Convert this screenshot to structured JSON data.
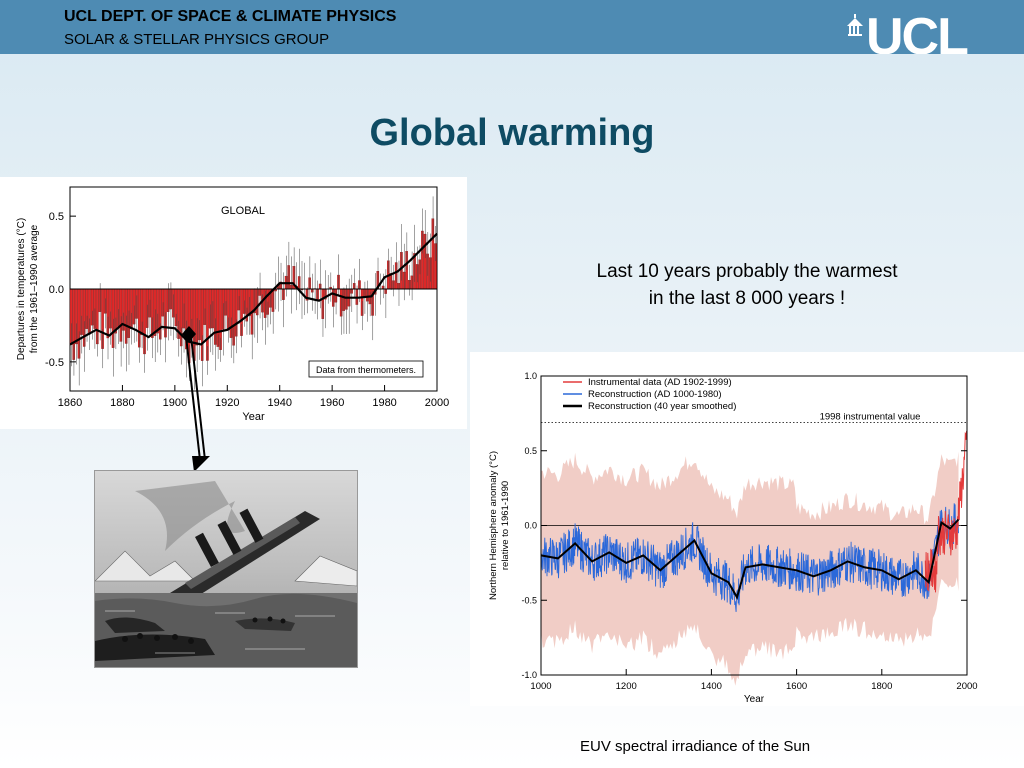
{
  "header": {
    "dept": "UCL DEPT. OF SPACE & CLIMATE PHYSICS",
    "group": "SOLAR & STELLAR PHYSICS GROUP",
    "logo_text": "UCL"
  },
  "slide": {
    "title": "Global warming",
    "quote_line1": "Last 10 years probably the warmest",
    "quote_line2": "in the last 8 000 years !",
    "caption": "EUV spectral irradiance of the Sun"
  },
  "chart_data": [
    {
      "type": "bar",
      "title": "GLOBAL",
      "xlabel": "Year",
      "ylabel_line1": "Departures in temperatures (°C)",
      "ylabel_line2": "from the 1961–1990 average",
      "annotation": "Data from thermometers.",
      "xlim": [
        1860,
        2000
      ],
      "ylim": [
        -0.7,
        0.7
      ],
      "x_ticks": [
        "1860",
        "1880",
        "1900",
        "1920",
        "1940",
        "1960",
        "1980",
        "2000"
      ],
      "y_ticks": [
        "0.5",
        "0.0",
        "-0.5"
      ],
      "smoothed_x": [
        1860,
        1865,
        1870,
        1875,
        1880,
        1885,
        1890,
        1895,
        1900,
        1905,
        1910,
        1915,
        1920,
        1925,
        1930,
        1935,
        1940,
        1945,
        1950,
        1955,
        1960,
        1965,
        1970,
        1975,
        1980,
        1985,
        1990,
        1995,
        2000
      ],
      "smoothed_y": [
        -0.38,
        -0.33,
        -0.28,
        -0.32,
        -0.24,
        -0.28,
        -0.33,
        -0.26,
        -0.27,
        -0.36,
        -0.38,
        -0.3,
        -0.28,
        -0.22,
        -0.15,
        -0.05,
        0.04,
        0.04,
        -0.06,
        -0.08,
        -0.03,
        -0.06,
        -0.06,
        -0.05,
        0.08,
        0.12,
        0.2,
        0.29,
        0.38
      ]
    },
    {
      "type": "line",
      "xlabel": "Year",
      "ylabel_line1": "Northern Hemisphere anomaly (°C)",
      "ylabel_line2": "relative to 1961-1990",
      "xlim": [
        1000,
        2000
      ],
      "ylim": [
        -1.0,
        1.0
      ],
      "x_ticks": [
        "1000",
        "1200",
        "1400",
        "1600",
        "1800",
        "2000"
      ],
      "y_ticks": [
        "1.0",
        "0.5",
        "0.0",
        "-0.5",
        "-1.0"
      ],
      "reference_value": 0.69,
      "reference_label": "1998 instrumental value",
      "series": [
        {
          "name": "Instrumental data (AD 1902-1999)",
          "color": "#e33b3b"
        },
        {
          "name": "Reconstruction (AD 1000-1980)",
          "color": "#2b68d9"
        },
        {
          "name": "Reconstruction (40 year smoothed)",
          "color": "#000000",
          "x": [
            1000,
            1040,
            1080,
            1120,
            1160,
            1200,
            1240,
            1280,
            1320,
            1360,
            1400,
            1440,
            1460,
            1480,
            1520,
            1560,
            1600,
            1640,
            1680,
            1720,
            1760,
            1800,
            1840,
            1880,
            1910,
            1940,
            1960,
            1980
          ],
          "y": [
            -0.2,
            -0.22,
            -0.12,
            -0.24,
            -0.18,
            -0.25,
            -0.2,
            -0.3,
            -0.2,
            -0.1,
            -0.32,
            -0.38,
            -0.48,
            -0.28,
            -0.26,
            -0.28,
            -0.3,
            -0.34,
            -0.3,
            -0.24,
            -0.28,
            -0.3,
            -0.36,
            -0.3,
            -0.38,
            0.02,
            -0.02,
            0.04
          ]
        }
      ]
    }
  ]
}
